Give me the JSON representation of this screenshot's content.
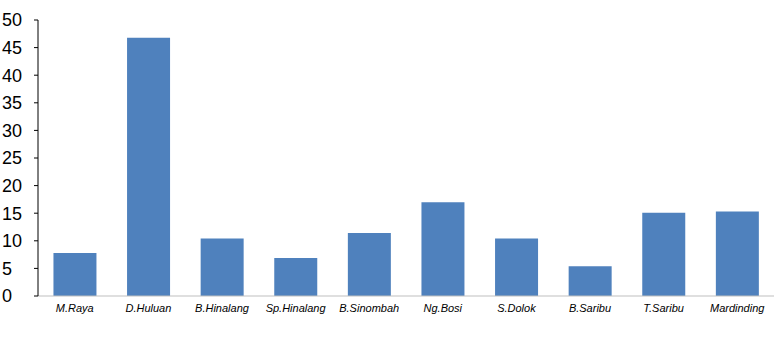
{
  "chart_data": {
    "type": "bar",
    "categories": [
      "M.Raya",
      "D.Huluan",
      "B.Hinalang",
      "Sp.Hinalang",
      "B.Sinombah",
      "Ng.Bosi",
      "S.Dolok",
      "B.Saribu",
      "T.Saribu",
      "Mardinding"
    ],
    "values": [
      7.8,
      46.8,
      10.4,
      6.9,
      11.4,
      17.0,
      10.4,
      5.4,
      15.1,
      15.3
    ],
    "color": "#4f81bd",
    "ylim": [
      0,
      50
    ],
    "yticks": [
      0,
      5,
      10,
      15,
      20,
      25,
      30,
      35,
      40,
      45,
      50
    ],
    "grid": false
  }
}
